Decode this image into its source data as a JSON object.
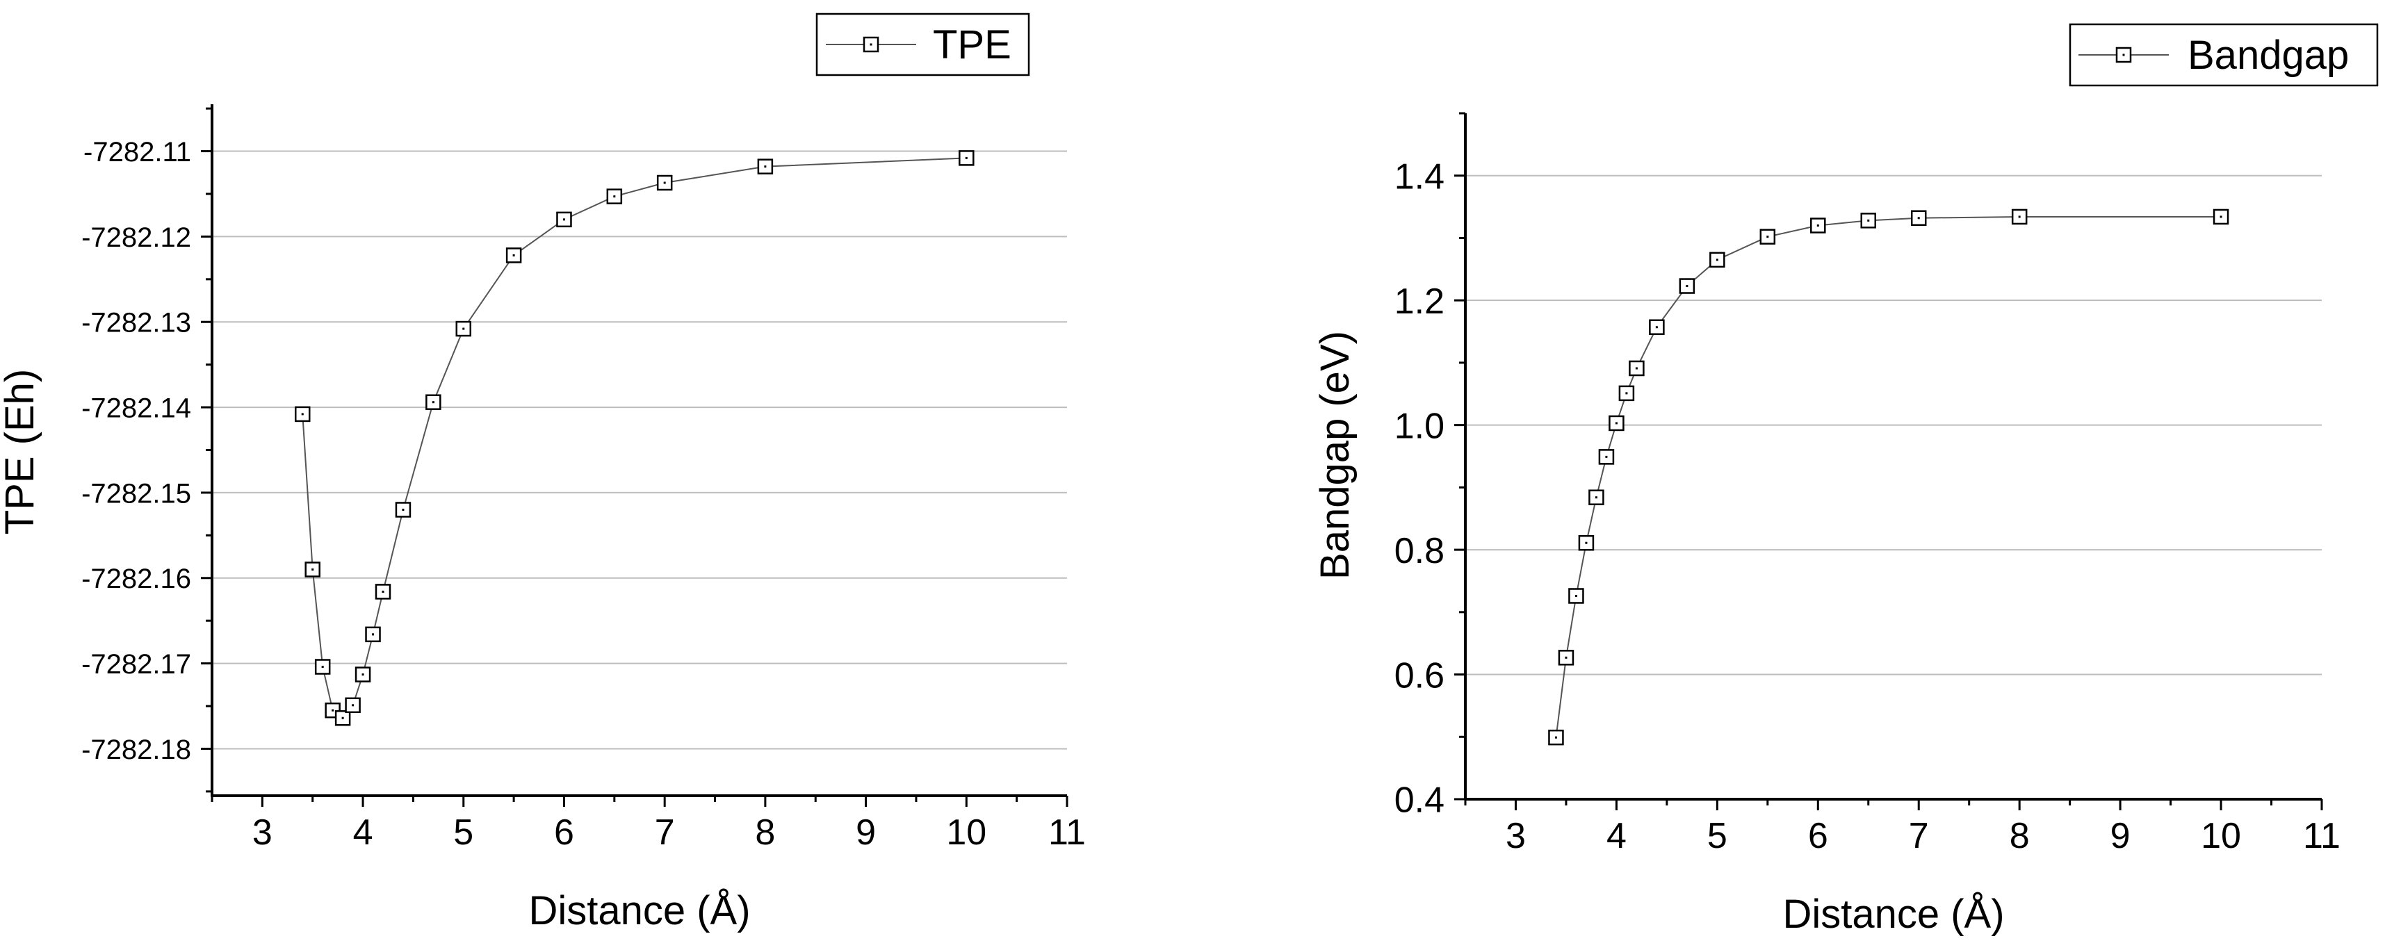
{
  "chart_data": [
    {
      "type": "line",
      "xlabel": "Distance (Å)",
      "ylabel": "TPE (Eh)",
      "xlim": [
        2.5,
        11
      ],
      "ylim": [
        -7282.1855,
        -7282.1045
      ],
      "x_ticks": [
        "3",
        "4",
        "5",
        "6",
        "7",
        "8",
        "9",
        "10",
        "11"
      ],
      "y_ticks": [
        "-7282.18",
        "-7282.17",
        "-7282.16",
        "-7282.15",
        "-7282.14",
        "-7282.13",
        "-7282.12",
        "-7282.11"
      ],
      "grid": "horizontal",
      "legend_position": "top-right",
      "marker": "open-square",
      "series": [
        {
          "name": "TPE",
          "x": [
            3.4,
            3.5,
            3.6,
            3.7,
            3.8,
            3.9,
            4.0,
            4.1,
            4.2,
            4.4,
            4.7,
            5.0,
            5.5,
            6.0,
            6.5,
            7.0,
            8.0,
            10.0
          ],
          "y": [
            -7282.1408,
            -7282.159,
            -7282.1704,
            -7282.1755,
            -7282.1764,
            -7282.1749,
            -7282.1713,
            -7282.1666,
            -7282.1616,
            -7282.152,
            -7282.1394,
            -7282.1308,
            -7282.1222,
            -7282.118,
            -7282.1153,
            -7282.1137,
            -7282.1118,
            -7282.1108
          ]
        }
      ]
    },
    {
      "type": "line",
      "xlabel": "Distance (Å)",
      "ylabel": "Bandgap (eV)",
      "xlim": [
        2.5,
        11
      ],
      "ylim": [
        0.4,
        1.5
      ],
      "x_ticks": [
        "3",
        "4",
        "5",
        "6",
        "7",
        "8",
        "9",
        "10",
        "11"
      ],
      "y_ticks": [
        "0.4",
        "0.6",
        "0.8",
        "1.0",
        "1.2",
        "1.4"
      ],
      "grid": "horizontal",
      "legend_position": "top-right",
      "marker": "open-square",
      "series": [
        {
          "name": "Bandgap",
          "x": [
            3.4,
            3.5,
            3.6,
            3.7,
            3.8,
            3.9,
            4.0,
            4.1,
            4.2,
            4.4,
            4.7,
            5.0,
            5.5,
            6.0,
            6.5,
            7.0,
            8.0,
            10.0
          ],
          "y": [
            0.499,
            0.627,
            0.726,
            0.811,
            0.884,
            0.949,
            1.003,
            1.051,
            1.091,
            1.157,
            1.223,
            1.265,
            1.302,
            1.32,
            1.328,
            1.332,
            1.334,
            1.334
          ]
        }
      ]
    }
  ]
}
